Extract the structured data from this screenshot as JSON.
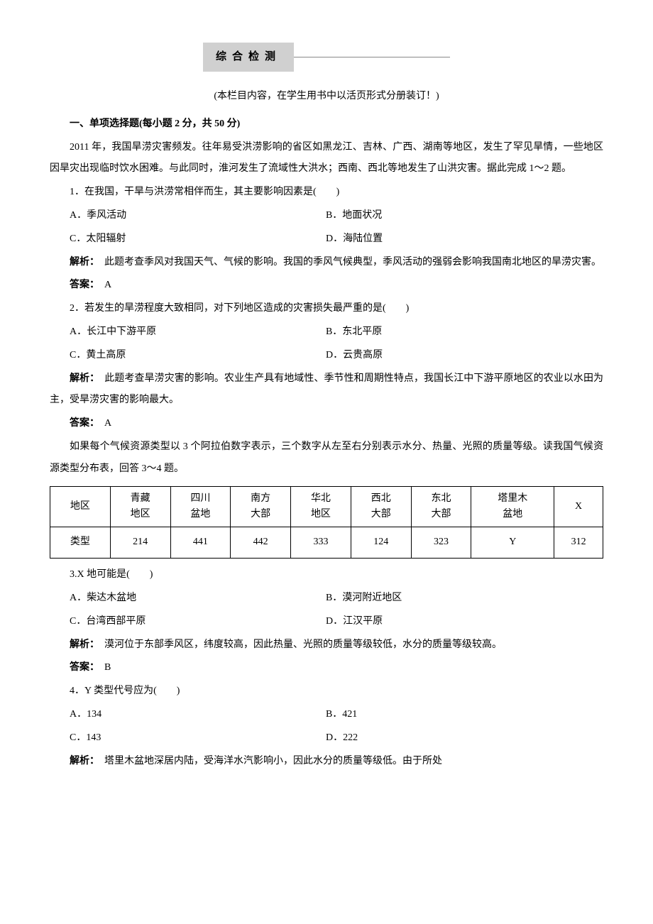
{
  "header": {
    "title": "综合检测",
    "note": "(本栏目内容，在学生用书中以活页形式分册装订！)"
  },
  "section1": {
    "title": "一、单项选择题(每小题 2 分，共 50 分)",
    "intro": "2011 年，我国旱涝灾害频发。往年易受洪涝影响的省区如黑龙江、吉林、广西、湖南等地区，发生了罕见旱情，一些地区因旱灾出现临时饮水困难。与此同时，淮河发生了流域性大洪水；西南、西北等地发生了山洪灾害。据此完成 1～2 题。"
  },
  "q1": {
    "stem": "1．在我国，干旱与洪涝常相伴而生，其主要影响因素是(　　)",
    "A": "A．季风活动",
    "B": "B．地面状况",
    "C": "C．太阳辐射",
    "D": "D．海陆位置",
    "jiexi_label": "解析：",
    "jiexi": "　此题考查季风对我国天气、气候的影响。我国的季风气候典型，季风活动的强弱会影响我国南北地区的旱涝灾害。",
    "daan_label": "答案：",
    "daan": "　A"
  },
  "q2": {
    "stem": "2．若发生的旱涝程度大致相同，对下列地区造成的灾害损失最严重的是(　　)",
    "A": "A．长江中下游平原",
    "B": "B．东北平原",
    "C": "C．黄土高原",
    "D": "D．云贵高原",
    "jiexi_label": "解析：",
    "jiexi": "　此题考查旱涝灾害的影响。农业生产具有地域性、季节性和周期性特点，我国长江中下游平原地区的农业以水田为主，受旱涝灾害的影响最大。",
    "daan_label": "答案：",
    "daan": "　A"
  },
  "intro34": "如果每个气候资源类型以 3 个阿拉伯数字表示，三个数字从左至右分别表示水分、热量、光照的质量等级。读我国气候资源类型分布表，回答 3～4 题。",
  "table": {
    "columns": [
      "地区",
      "青藏\n地区",
      "四川\n盆地",
      "南方\n大部",
      "华北\n地区",
      "西北\n大部",
      "东北\n大部",
      "塔里木\n盆地",
      "X"
    ],
    "row_label": "类型",
    "row_data": [
      "214",
      "441",
      "442",
      "333",
      "124",
      "323",
      "Y",
      "312"
    ],
    "border_color": "#000000",
    "cell_font_size": 14
  },
  "q3": {
    "stem": "3.X 地可能是(　　)",
    "A": "A．柴达木盆地",
    "B": "B．漠河附近地区",
    "C": "C．台湾西部平原",
    "D": "D．江汉平原",
    "jiexi_label": "解析：",
    "jiexi": "　漠河位于东部季风区，纬度较高，因此热量、光照的质量等级较低，水分的质量等级较高。",
    "daan_label": "答案：",
    "daan": "　B"
  },
  "q4": {
    "stem": "4．Y 类型代号应为(　　)",
    "A": "A．134",
    "B": "B．421",
    "C": "C．143",
    "D": "D．222",
    "jiexi_label": "解析：",
    "jiexi": "　塔里木盆地深居内陆，受海洋水汽影响小，因此水分的质量等级低。由于所处"
  }
}
